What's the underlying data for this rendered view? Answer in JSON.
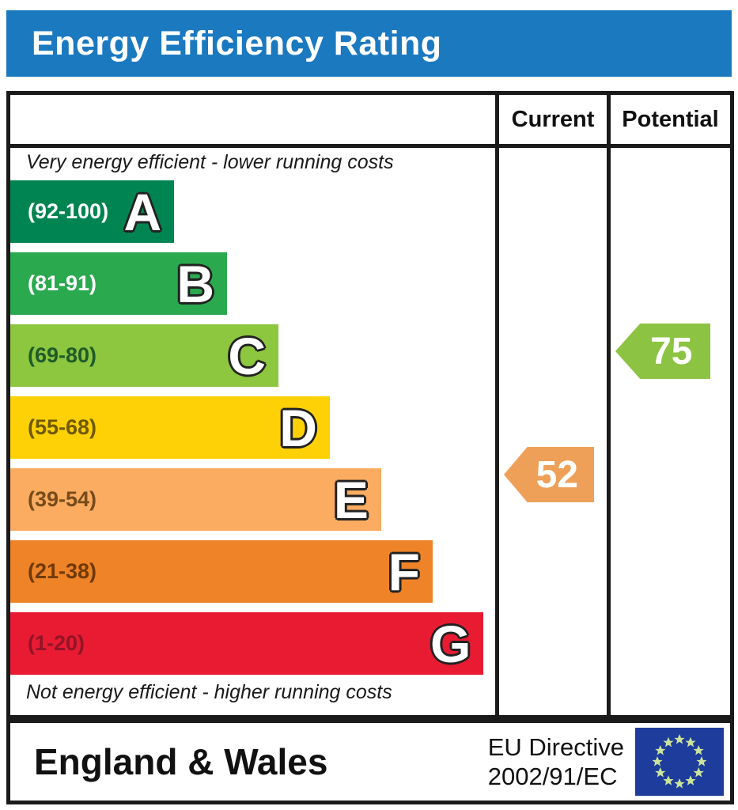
{
  "title": "Energy Efficiency Rating",
  "columns": {
    "current": "Current",
    "potential": "Potential"
  },
  "top_note": "Very energy efficient - lower running costs",
  "bottom_note": "Not energy efficient - higher running costs",
  "footer": {
    "region": "England & Wales",
    "directive_line1": "EU Directive",
    "directive_line2": "2002/91/EC",
    "eu_flag_icon": "eu-flag-icon"
  },
  "colors": {
    "title_bar_blue": "#1b79c0",
    "border_black": "#1a1a1a",
    "eu_flag_blue": "#1e3c9b",
    "eu_star_color": "#cbe39b"
  },
  "chart_data": {
    "type": "bar",
    "title": "Energy Efficiency Rating",
    "scale_min": 1,
    "scale_max": 100,
    "legend_position": "none",
    "grid": false,
    "bands": [
      {
        "letter": "A",
        "range": "(92-100)",
        "min": 92,
        "max": 100,
        "color": "#008552",
        "label_color": "#ffffff",
        "width_pct": 33.8
      },
      {
        "letter": "B",
        "range": "(81-91)",
        "min": 81,
        "max": 91,
        "color": "#2ba94f",
        "label_color": "#ffffff",
        "width_pct": 44.7
      },
      {
        "letter": "C",
        "range": "(69-80)",
        "min": 69,
        "max": 80,
        "color": "#8dc63f",
        "label_color": "#1e5b2a",
        "width_pct": 55.3
      },
      {
        "letter": "D",
        "range": "(55-68)",
        "min": 55,
        "max": 68,
        "color": "#fed106",
        "label_color": "#6f5a00",
        "width_pct": 65.9
      },
      {
        "letter": "E",
        "range": "(39-54)",
        "min": 39,
        "max": 54,
        "color": "#fbac60",
        "label_color": "#774b1b",
        "width_pct": 76.5
      },
      {
        "letter": "F",
        "range": "(21-38)",
        "min": 21,
        "max": 38,
        "color": "#ef8327",
        "label_color": "#703a08",
        "width_pct": 87.1
      },
      {
        "letter": "G",
        "range": "(1-20)",
        "min": 1,
        "max": 20,
        "color": "#e81b33",
        "label_color": "#921427",
        "width_pct": 97.6
      }
    ],
    "current": {
      "value": 52,
      "band": "E",
      "color": "#efa058"
    },
    "potential": {
      "value": 75,
      "band": "C",
      "color": "#8cc342"
    }
  }
}
